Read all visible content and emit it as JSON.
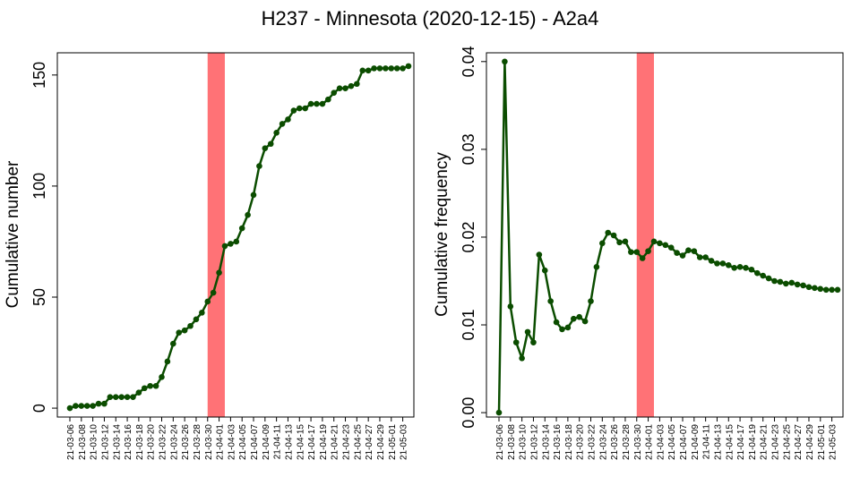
{
  "title": "H237 - Minnesota (2020-12-15) - A2a4",
  "colors": {
    "line": "#0b4d00",
    "point": "#0b4d00",
    "band": "#ff7276",
    "axis": "#000000"
  },
  "chart_data": [
    {
      "type": "line",
      "ylabel": "Cumulative number",
      "ylim": [
        -4,
        160
      ],
      "yticks": [
        0,
        50,
        100,
        150
      ],
      "highlight_band": {
        "from_index": 24,
        "to_index": 27
      },
      "categories": [
        "21-03-06",
        "21-03-07",
        "21-03-08",
        "21-03-09",
        "21-03-10",
        "21-03-11",
        "21-03-12",
        "21-03-13",
        "21-03-14",
        "21-03-15",
        "21-03-16",
        "21-03-17",
        "21-03-18",
        "21-03-19",
        "21-03-20",
        "21-03-21",
        "21-03-22",
        "21-03-23",
        "21-03-24",
        "21-03-25",
        "21-03-26",
        "21-03-27",
        "21-03-28",
        "21-03-29",
        "21-03-30",
        "21-03-31",
        "21-04-01",
        "21-04-02",
        "21-04-03",
        "21-04-04",
        "21-04-05",
        "21-04-06",
        "21-04-07",
        "21-04-08",
        "21-04-09",
        "21-04-10",
        "21-04-11",
        "21-04-12",
        "21-04-13",
        "21-04-14",
        "21-04-15",
        "21-04-16",
        "21-04-17",
        "21-04-18",
        "21-04-19",
        "21-04-20",
        "21-04-21",
        "21-04-22",
        "21-04-23",
        "21-04-24",
        "21-04-25",
        "21-04-26",
        "21-04-27",
        "21-04-28",
        "21-04-29",
        "21-04-30",
        "21-05-01",
        "21-05-02",
        "21-05-03",
        "21-05-04"
      ],
      "tick_labels": [
        "21-03-06",
        "21-03-08",
        "21-03-10",
        "21-03-12",
        "21-03-14",
        "21-03-16",
        "21-03-18",
        "21-03-20",
        "21-03-22",
        "21-03-24",
        "21-03-26",
        "21-03-28",
        "21-03-30",
        "21-04-01",
        "21-04-03",
        "21-04-05",
        "21-04-07",
        "21-04-09",
        "21-04-11",
        "21-04-13",
        "21-04-15",
        "21-04-17",
        "21-04-19",
        "21-04-21",
        "21-04-23",
        "21-04-25",
        "21-04-27",
        "21-04-29",
        "21-05-01",
        "21-05-03"
      ],
      "values": [
        0,
        1,
        1,
        1,
        1,
        2,
        2,
        5,
        5,
        5,
        5,
        5,
        7,
        9,
        10,
        10,
        14,
        21,
        29,
        34,
        35,
        37,
        40,
        43,
        48,
        52,
        61,
        73,
        74,
        75,
        81,
        87,
        96,
        109,
        117,
        119,
        124,
        128,
        130,
        134,
        135,
        135,
        137,
        137,
        137,
        139,
        142,
        144,
        144,
        145,
        146,
        152,
        152,
        153,
        153,
        153,
        153,
        153,
        153,
        154
      ]
    },
    {
      "type": "line",
      "ylabel": "Cumulative frequency",
      "ylim": [
        -0.0005,
        0.041
      ],
      "yticks": [
        "0.00",
        "0.01",
        "0.02",
        "0.03",
        "0.04"
      ],
      "ytick_values": [
        0,
        0.01,
        0.02,
        0.03,
        0.04
      ],
      "highlight_band": {
        "from_index": 24,
        "to_index": 27
      },
      "categories": [
        "21-03-06",
        "21-03-07",
        "21-03-08",
        "21-03-09",
        "21-03-10",
        "21-03-11",
        "21-03-12",
        "21-03-13",
        "21-03-14",
        "21-03-15",
        "21-03-16",
        "21-03-17",
        "21-03-18",
        "21-03-19",
        "21-03-20",
        "21-03-21",
        "21-03-22",
        "21-03-23",
        "21-03-24",
        "21-03-25",
        "21-03-26",
        "21-03-27",
        "21-03-28",
        "21-03-29",
        "21-03-30",
        "21-03-31",
        "21-04-01",
        "21-04-02",
        "21-04-03",
        "21-04-04",
        "21-04-05",
        "21-04-06",
        "21-04-07",
        "21-04-08",
        "21-04-09",
        "21-04-10",
        "21-04-11",
        "21-04-12",
        "21-04-13",
        "21-04-14",
        "21-04-15",
        "21-04-16",
        "21-04-17",
        "21-04-18",
        "21-04-19",
        "21-04-20",
        "21-04-21",
        "21-04-22",
        "21-04-23",
        "21-04-24",
        "21-04-25",
        "21-04-26",
        "21-04-27",
        "21-04-28",
        "21-04-29",
        "21-04-30",
        "21-05-01",
        "21-05-02",
        "21-05-03",
        "21-05-04"
      ],
      "tick_labels": [
        "21-03-06",
        "21-03-08",
        "21-03-10",
        "21-03-12",
        "21-03-14",
        "21-03-16",
        "21-03-18",
        "21-03-20",
        "21-03-22",
        "21-03-24",
        "21-03-26",
        "21-03-28",
        "21-03-30",
        "21-04-01",
        "21-04-03",
        "21-04-05",
        "21-04-07",
        "21-04-09",
        "21-04-11",
        "21-04-13",
        "21-04-15",
        "21-04-17",
        "21-04-19",
        "21-04-21",
        "21-04-23",
        "21-04-25",
        "21-04-27",
        "21-04-29",
        "21-05-01",
        "21-05-03"
      ],
      "values": [
        0,
        0.04,
        0.0121,
        0.008,
        0.0062,
        0.0092,
        0.008,
        0.018,
        0.0162,
        0.0127,
        0.0103,
        0.0095,
        0.0097,
        0.0107,
        0.0109,
        0.0104,
        0.0127,
        0.0166,
        0.0193,
        0.0205,
        0.0202,
        0.0194,
        0.0195,
        0.0183,
        0.0183,
        0.0176,
        0.0184,
        0.0195,
        0.0193,
        0.0191,
        0.0188,
        0.0182,
        0.0179,
        0.0185,
        0.0184,
        0.0177,
        0.0177,
        0.0173,
        0.017,
        0.017,
        0.0168,
        0.0165,
        0.0166,
        0.0165,
        0.0163,
        0.0159,
        0.0156,
        0.0153,
        0.015,
        0.0149,
        0.0147,
        0.0148,
        0.0146,
        0.0145,
        0.0143,
        0.0142,
        0.0141,
        0.014,
        0.014,
        0.014
      ]
    }
  ]
}
